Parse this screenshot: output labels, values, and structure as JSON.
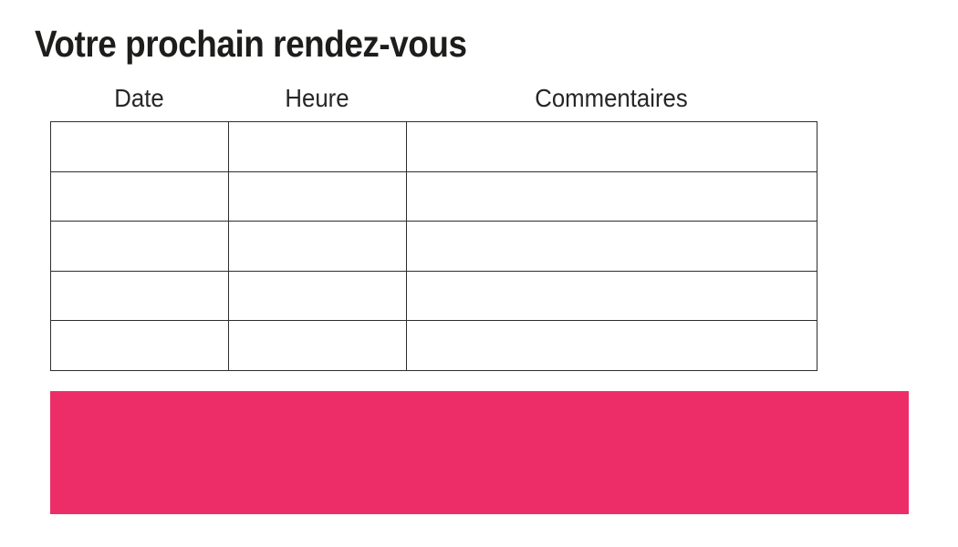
{
  "title": "Votre prochain rendez-vous",
  "table": {
    "headers": [
      "Date",
      "Heure",
      "Commentaires"
    ],
    "row_count": 5,
    "rows": [
      [
        "",
        "",
        ""
      ],
      [
        "",
        "",
        ""
      ],
      [
        "",
        "",
        ""
      ],
      [
        "",
        "",
        ""
      ],
      [
        "",
        "",
        ""
      ]
    ]
  },
  "banner": {
    "text": "",
    "color": "#ED2D67"
  },
  "colors": {
    "background": "#FFFFFF",
    "title_text": "#1D1D1B",
    "header_text": "#262626",
    "table_border": "#2E2E2E",
    "accent_pink": "#ED2D67"
  }
}
